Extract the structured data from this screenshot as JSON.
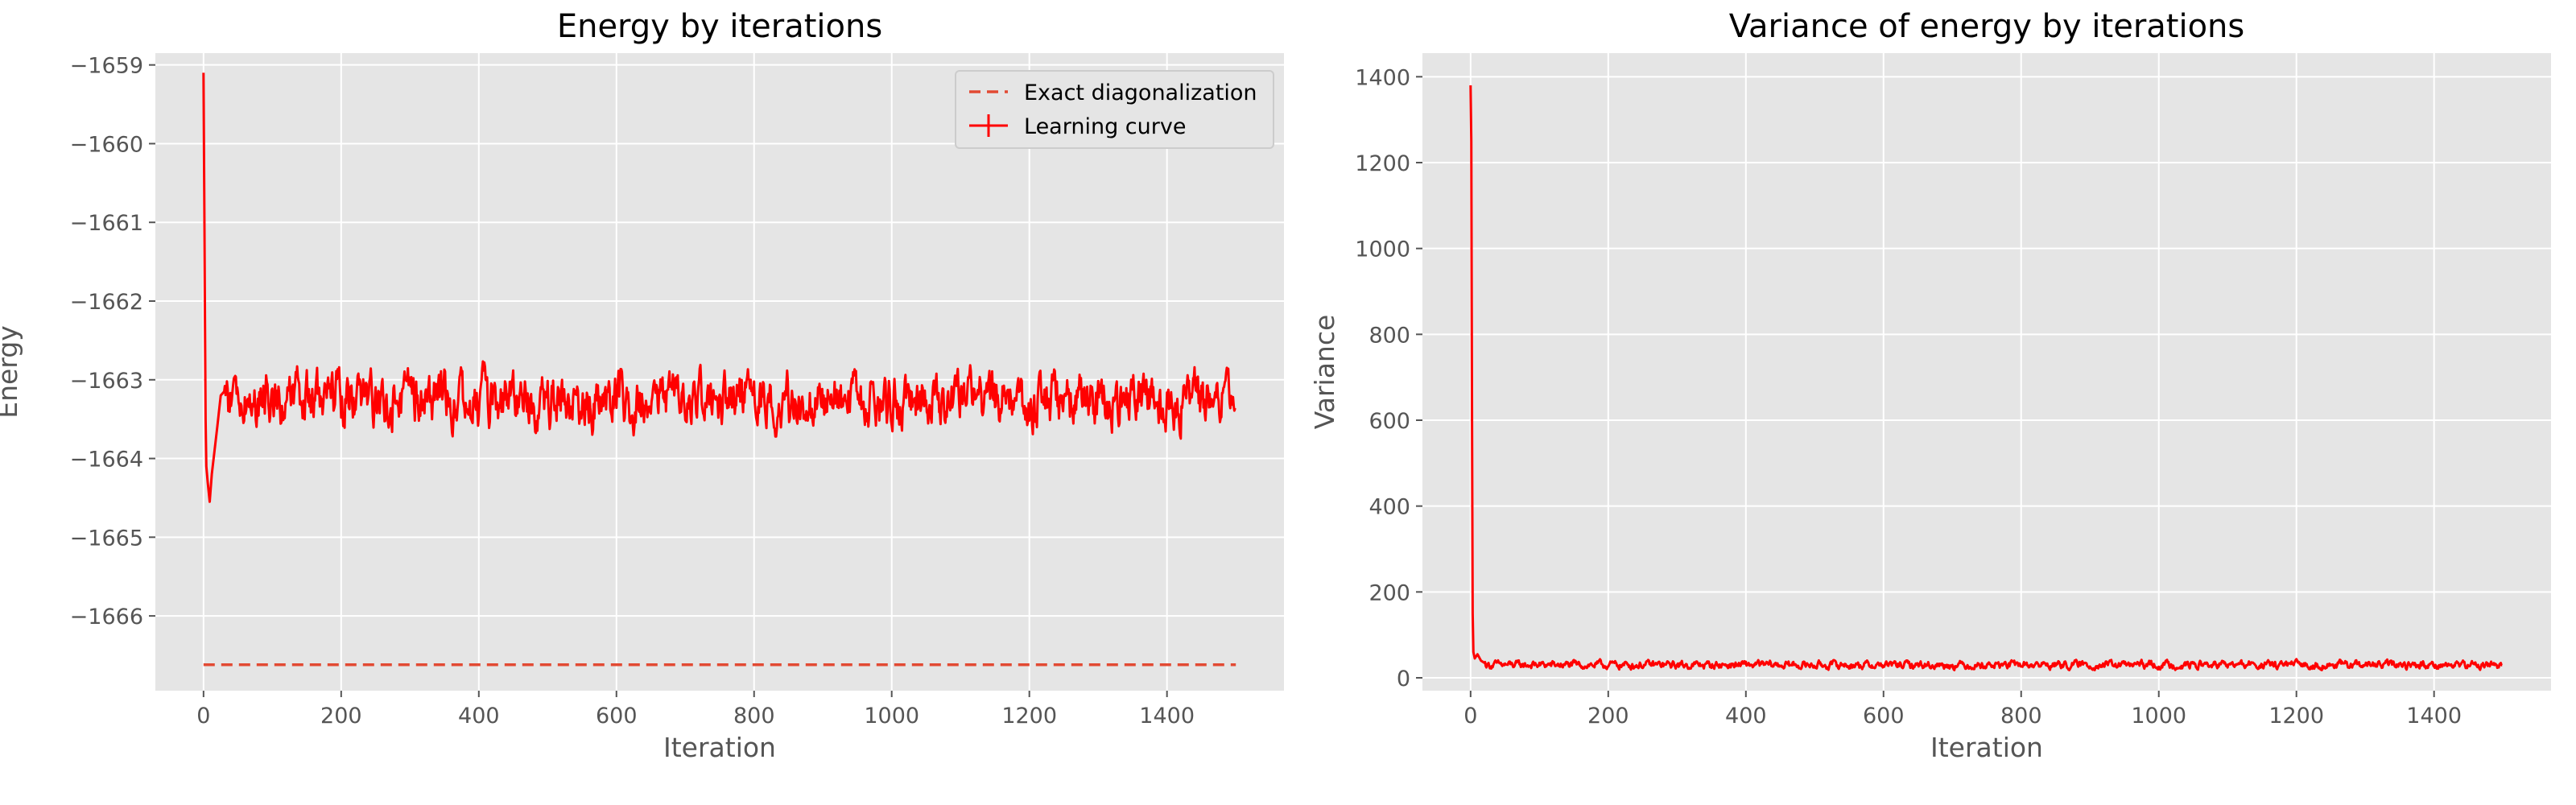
{
  "chart_data": [
    {
      "type": "line",
      "title": "Energy by iterations",
      "xlabel": "Iteration",
      "ylabel": "Energy",
      "xlim": [
        -70,
        1570
      ],
      "ylim": [
        -1666.95,
        -1658.85
      ],
      "x_ticks": [
        0,
        200,
        400,
        600,
        800,
        1000,
        1200,
        1400
      ],
      "y_ticks": [
        -1666,
        -1665,
        -1664,
        -1663,
        -1662,
        -1661,
        -1660,
        -1659
      ],
      "grid": true,
      "legend": "top-right",
      "series": [
        {
          "name": "Exact diagonalization",
          "style": "dashed",
          "color": "#e24a33",
          "x": [
            0,
            1500
          ],
          "y": [
            -1666.62,
            -1666.62
          ]
        },
        {
          "name": "Learning curve",
          "style": "solid",
          "color": "#ff0000",
          "error_bars": true,
          "x_range": [
            0,
            1500
          ],
          "n_points": 1500,
          "initial": [
            [
              0,
              -1659.1
            ],
            [
              1,
              -1660.6
            ],
            [
              2,
              -1662.2
            ],
            [
              3,
              -1663.5
            ],
            [
              4,
              -1664.1
            ],
            [
              6,
              -1664.3
            ],
            [
              9,
              -1664.55
            ],
            [
              12,
              -1664.2
            ],
            [
              16,
              -1663.9
            ],
            [
              20,
              -1663.6
            ],
            [
              25,
              -1663.2
            ],
            [
              30,
              -1663.15
            ]
          ],
          "steady_mean": -1663.25,
          "steady_amplitude": 0.22,
          "steady_min": -1663.78,
          "steady_max": -1662.62
        }
      ]
    },
    {
      "type": "line",
      "title": "Variance of energy by iterations",
      "xlabel": "Iteration",
      "ylabel": "Variance",
      "xlim": [
        -70,
        1570
      ],
      "ylim": [
        -30,
        1455
      ],
      "x_ticks": [
        0,
        200,
        400,
        600,
        800,
        1000,
        1200,
        1400
      ],
      "y_ticks": [
        0,
        200,
        400,
        600,
        800,
        1000,
        1200,
        1400
      ],
      "grid": true,
      "series": [
        {
          "style": "solid",
          "color": "#ff0000",
          "x_range": [
            0,
            1500
          ],
          "n_points": 1500,
          "initial": [
            [
              0,
              1380
            ],
            [
              1,
              1250
            ],
            [
              2,
              600
            ],
            [
              3,
              150
            ],
            [
              4,
              60
            ],
            [
              6,
              45
            ],
            [
              10,
              55
            ],
            [
              15,
              40
            ],
            [
              20,
              35
            ]
          ],
          "steady_mean": 30,
          "steady_amplitude": 6,
          "steady_min": 18,
          "steady_max": 50
        }
      ]
    }
  ],
  "colors": {
    "background": "#e5e5e5",
    "grid": "#ffffff",
    "line": "#ff0000",
    "dashed": "#e24a33",
    "text": "#555555",
    "title": "#000000"
  }
}
